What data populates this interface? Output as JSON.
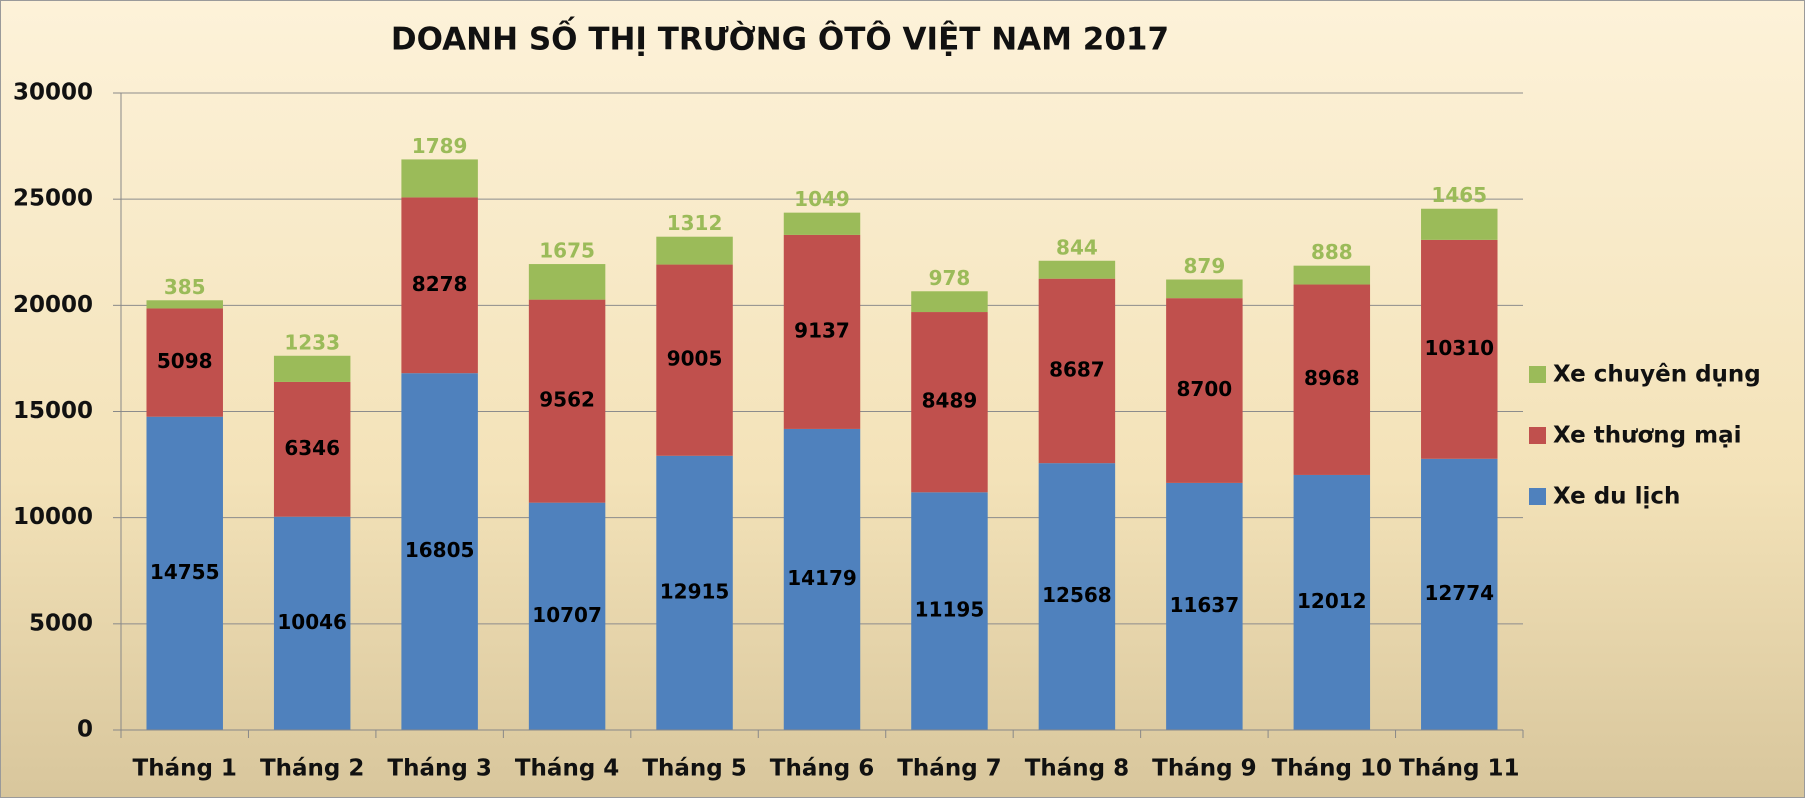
{
  "chart_data": {
    "type": "stacked_bar",
    "title": "DOANH SỐ THỊ TRƯỜNG ÔTÔ VIỆT NAM 2017",
    "categories": [
      "Tháng 1",
      "Tháng 2",
      "Tháng 3",
      "Tháng 4",
      "Tháng 5",
      "Tháng 6",
      "Tháng 7",
      "Tháng 8",
      "Tháng 9",
      "Tháng 10",
      "Tháng 11"
    ],
    "series": [
      {
        "name": "Xe du lịch",
        "color": "#4f81bd",
        "values": [
          14755,
          10046,
          16805,
          10707,
          12915,
          14179,
          11195,
          12568,
          11637,
          12012,
          12774
        ]
      },
      {
        "name": "Xe thương mại",
        "color": "#c0504d",
        "values": [
          5098,
          6346,
          8278,
          9562,
          9005,
          9137,
          8489,
          8687,
          8700,
          8968,
          10310
        ]
      },
      {
        "name": "Xe chuyên dụng",
        "color": "#9bbb59",
        "values": [
          385,
          1233,
          1789,
          1675,
          1312,
          1049,
          978,
          844,
          879,
          888,
          1465
        ]
      }
    ],
    "ylim": [
      0,
      30000
    ],
    "yticks": [
      0,
      5000,
      10000,
      15000,
      20000,
      25000,
      30000
    ],
    "grid": true,
    "legend": "right"
  }
}
